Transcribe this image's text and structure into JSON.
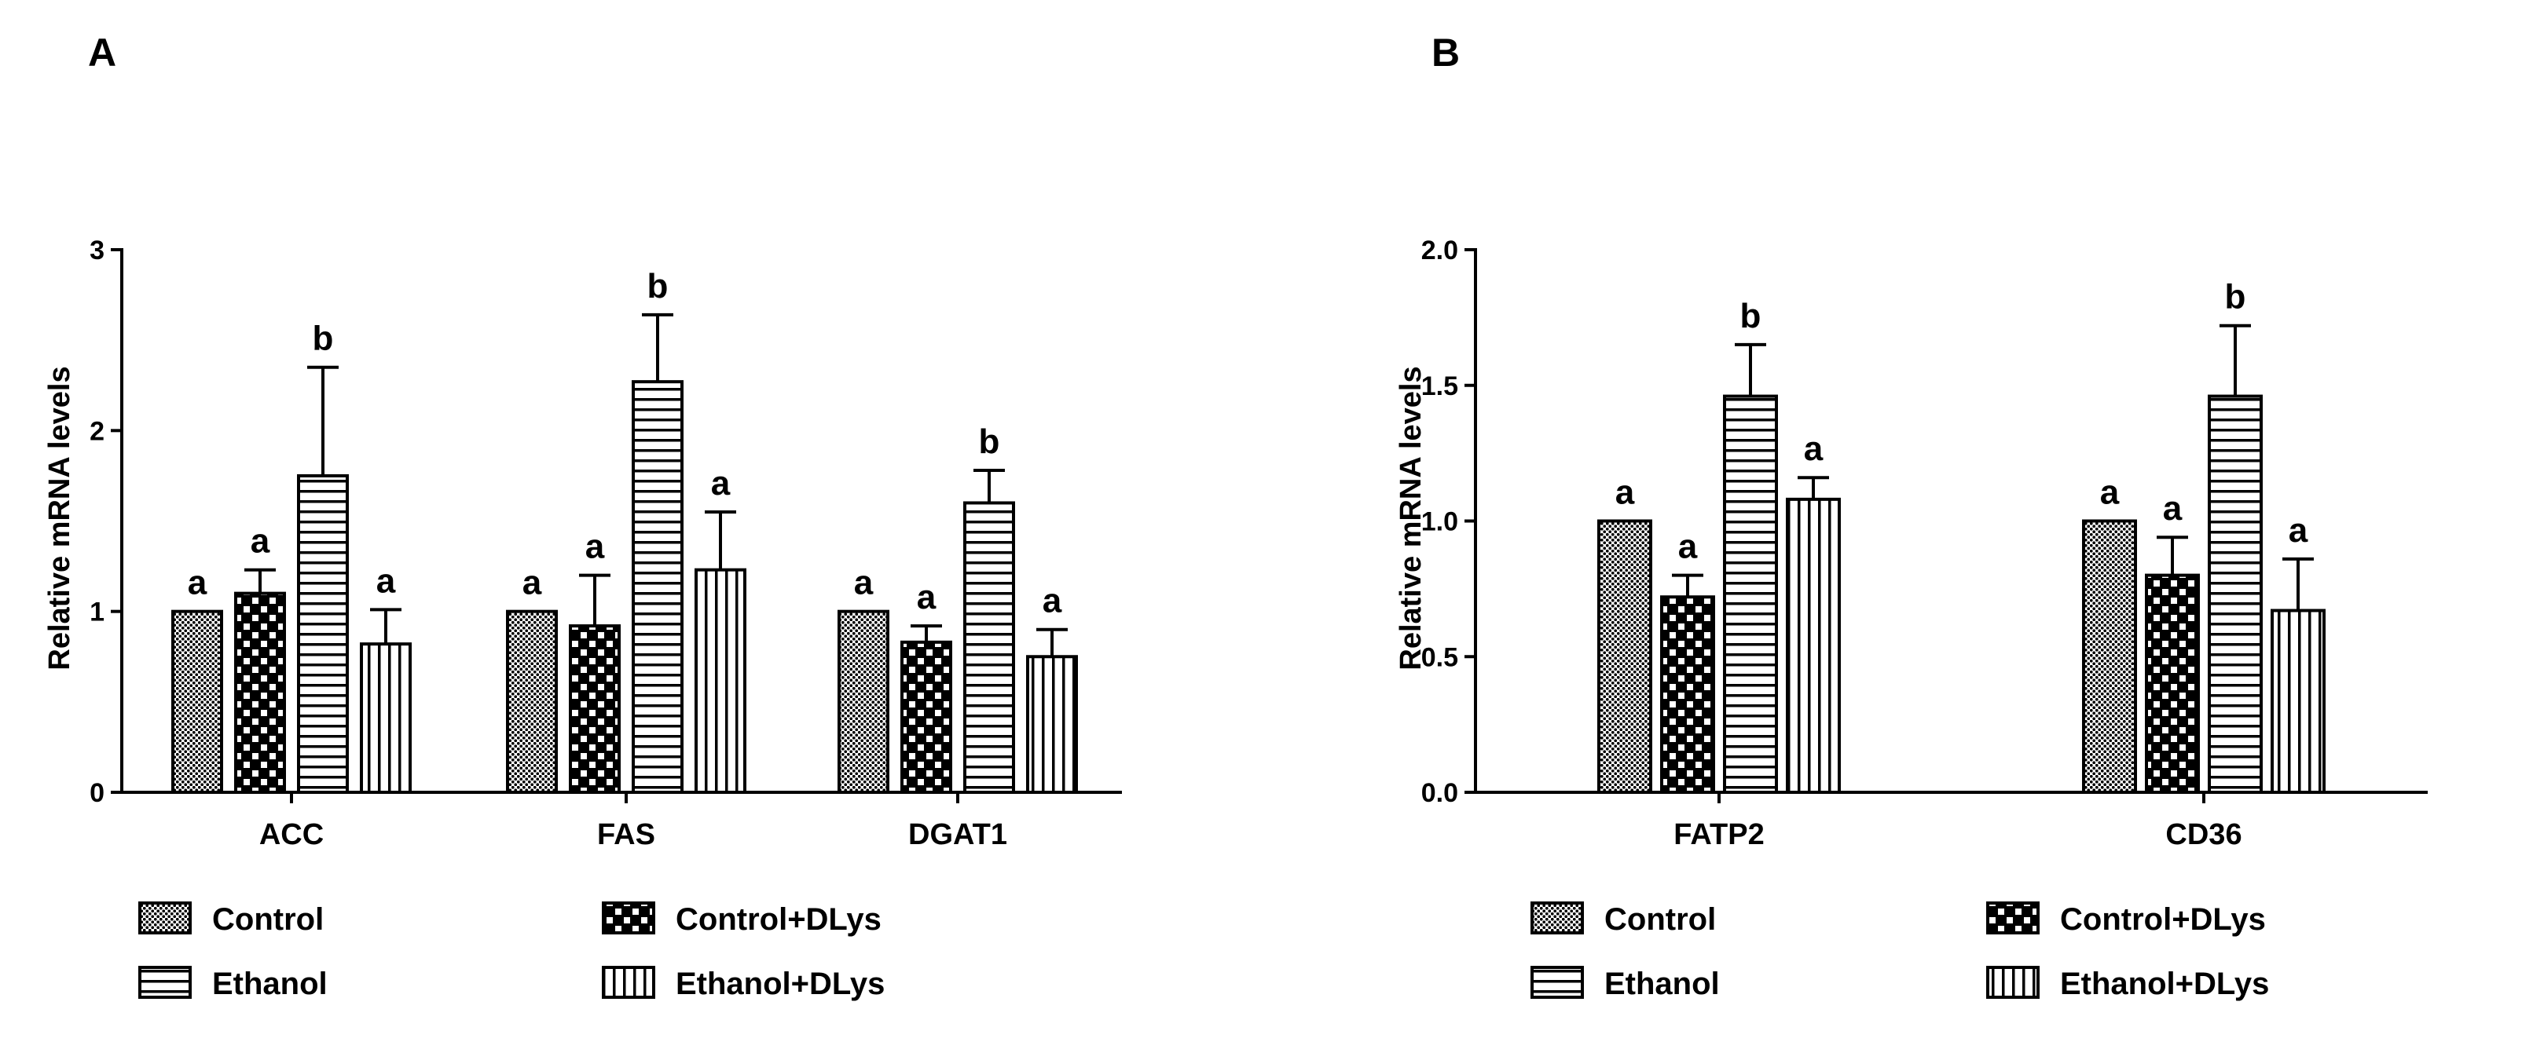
{
  "chart_data": [
    {
      "type": "bar",
      "panel": "A",
      "ylabel": "Relative mRNA levels",
      "xlabel": "",
      "ylim": [
        0,
        3
      ],
      "yticks": [
        "0",
        "1",
        "2",
        "3"
      ],
      "categories": [
        "ACC",
        "FAS",
        "DGAT1"
      ],
      "series": [
        {
          "name": "Control",
          "pattern": "dots",
          "values": [
            1.0,
            1.0,
            1.0
          ],
          "errors": [
            0,
            0,
            0
          ],
          "labels": [
            "a",
            "a",
            "a"
          ]
        },
        {
          "name": "Control+DLys",
          "pattern": "checker",
          "values": [
            1.1,
            0.92,
            0.83
          ],
          "errors": [
            0.13,
            0.28,
            0.09
          ],
          "labels": [
            "a",
            "a",
            "a"
          ]
        },
        {
          "name": "Ethanol",
          "pattern": "hlines",
          "values": [
            1.75,
            2.27,
            1.6
          ],
          "errors": [
            0.6,
            0.37,
            0.18
          ],
          "labels": [
            "b",
            "b",
            "b"
          ]
        },
        {
          "name": "Ethanol+DLys",
          "pattern": "vlines",
          "values": [
            0.82,
            1.23,
            0.75
          ],
          "errors": [
            0.19,
            0.32,
            0.15
          ],
          "labels": [
            "a",
            "a",
            "a"
          ]
        }
      ]
    },
    {
      "type": "bar",
      "panel": "B",
      "ylabel": "Relative mRNA levels",
      "xlabel": "",
      "ylim": [
        0,
        2
      ],
      "yticks": [
        "0.0",
        "0.5",
        "1.0",
        "1.5",
        "2.0"
      ],
      "categories": [
        "FATP2",
        "CD36"
      ],
      "series": [
        {
          "name": "Control",
          "pattern": "dots",
          "values": [
            1.0,
            1.0
          ],
          "errors": [
            0,
            0
          ],
          "labels": [
            "a",
            "a"
          ]
        },
        {
          "name": "Control+DLys",
          "pattern": "checker",
          "values": [
            0.72,
            0.8
          ],
          "errors": [
            0.08,
            0.14
          ],
          "labels": [
            "a",
            "a"
          ]
        },
        {
          "name": "Ethanol",
          "pattern": "hlines",
          "values": [
            1.46,
            1.46
          ],
          "errors": [
            0.19,
            0.26
          ],
          "labels": [
            "b",
            "b"
          ]
        },
        {
          "name": "Ethanol+DLys",
          "pattern": "vlines",
          "values": [
            1.08,
            0.67
          ],
          "errors": [
            0.08,
            0.19
          ],
          "labels": [
            "a",
            "a"
          ]
        }
      ]
    }
  ]
}
